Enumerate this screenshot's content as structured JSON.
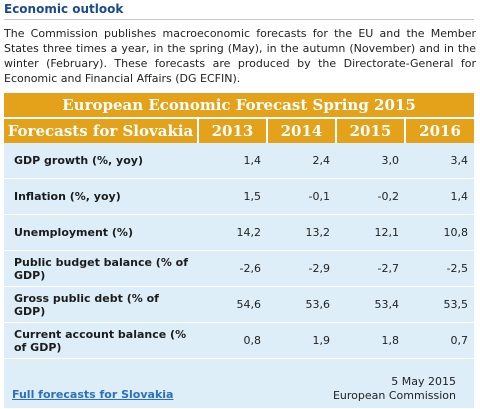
{
  "section": {
    "title": "Economic outlook",
    "intro": "The Commission publishes macroeconomic forecasts for the EU and the Member States three times a year, in the spring (May), in the autumn (November) and in the winter (February). These forecasts are produced by the Directorate-General for Economic and Financial Affairs (DG ECFIN)."
  },
  "table": {
    "banner": "European Economic Forecast Spring 2015",
    "header_label": "Forecasts for Slovakia",
    "years": [
      "2013",
      "2014",
      "2015",
      "2016"
    ],
    "rows": [
      {
        "label": "GDP growth (%, yoy)",
        "values": [
          "1,4",
          "2,4",
          "3,0",
          "3,4"
        ]
      },
      {
        "label": "Inflation (%, yoy)",
        "values": [
          "1,5",
          "-0,1",
          "-0,2",
          "1,4"
        ]
      },
      {
        "label": "Unemployment (%)",
        "values": [
          "14,2",
          "13,2",
          "12,1",
          "10,8"
        ]
      },
      {
        "label": "Public budget balance (% of GDP)",
        "values": [
          "-2,6",
          "-2,9",
          "-2,7",
          "-2,5"
        ]
      },
      {
        "label": "Gross public debt (% of GDP)",
        "values": [
          "54,6",
          "53,6",
          "53,4",
          "53,5"
        ]
      },
      {
        "label": "Current account balance (% of GDP)",
        "values": [
          "0,8",
          "1,9",
          "1,8",
          "0,7"
        ]
      }
    ]
  },
  "footer": {
    "link": "Full forecasts for Slovakia",
    "date": "5 May 2015",
    "source": "European Commission"
  },
  "colors": {
    "header_orange": "#e3a21a",
    "box_blue": "#ddeef8",
    "title_blue": "#1a4c8c",
    "link_blue": "#2a6fc1"
  }
}
